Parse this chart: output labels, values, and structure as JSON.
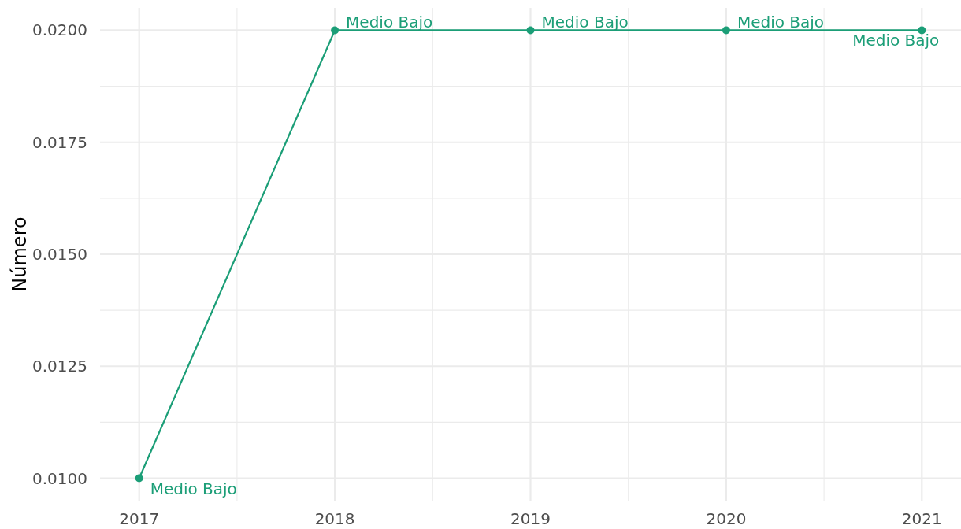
{
  "chart_data": {
    "type": "line",
    "ylabel": "Número",
    "x": [
      2017,
      2018,
      2019,
      2020,
      2021
    ],
    "series": [
      {
        "color": "#1b9e77",
        "values": [
          0.01,
          0.02,
          0.02,
          0.02,
          0.02
        ],
        "value_labels": [
          "Medio Bajo",
          "Medio Bajo",
          "Medio Bajo",
          "Medio Bajo",
          "Medio Bajo"
        ]
      }
    ],
    "xlim": [
      2016.8,
      2021.2
    ],
    "xticks": [
      2017,
      2018,
      2019,
      2020,
      2021
    ],
    "ylim": [
      0.0095,
      0.0205
    ],
    "yticks": [
      {
        "value": 0.01,
        "label": "0.0100"
      },
      {
        "value": 0.0125,
        "label": "0.0125"
      },
      {
        "value": 0.015,
        "label": "0.0150"
      },
      {
        "value": 0.0175,
        "label": "0.0175"
      },
      {
        "value": 0.02,
        "label": "0.0200"
      }
    ],
    "grid": true,
    "marker": "circle",
    "line_style": "solid"
  }
}
